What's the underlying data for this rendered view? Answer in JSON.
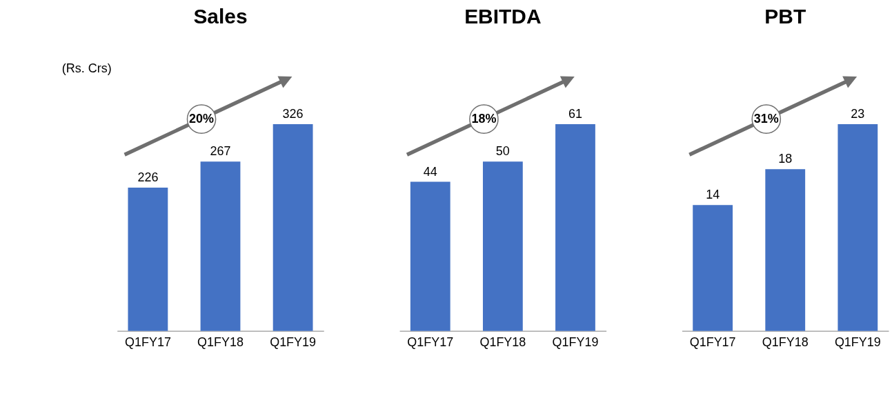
{
  "chart_data": [
    {
      "type": "bar",
      "title": "Sales",
      "categories": [
        "Q1FY17",
        "Q1FY18",
        "Q1FY19"
      ],
      "values": [
        226,
        267,
        326
      ],
      "color": "#4472c4",
      "data_labels": true,
      "annotations": [
        "(Rs. Crs)",
        "20%"
      ]
    },
    {
      "type": "bar",
      "title": "EBITDA",
      "categories": [
        "Q1FY17",
        "Q1FY18",
        "Q1FY19"
      ],
      "values": [
        44,
        50,
        61
      ],
      "color": "#4472c4",
      "data_labels": true,
      "annotations": [
        "18%"
      ]
    },
    {
      "type": "bar",
      "title": "PBT",
      "categories": [
        "Q1FY17",
        "Q1FY18",
        "Q1FY19"
      ],
      "values": [
        14,
        18,
        23
      ],
      "color": "#4472c4",
      "data_labels": true,
      "annotations": [
        "31%"
      ]
    }
  ]
}
